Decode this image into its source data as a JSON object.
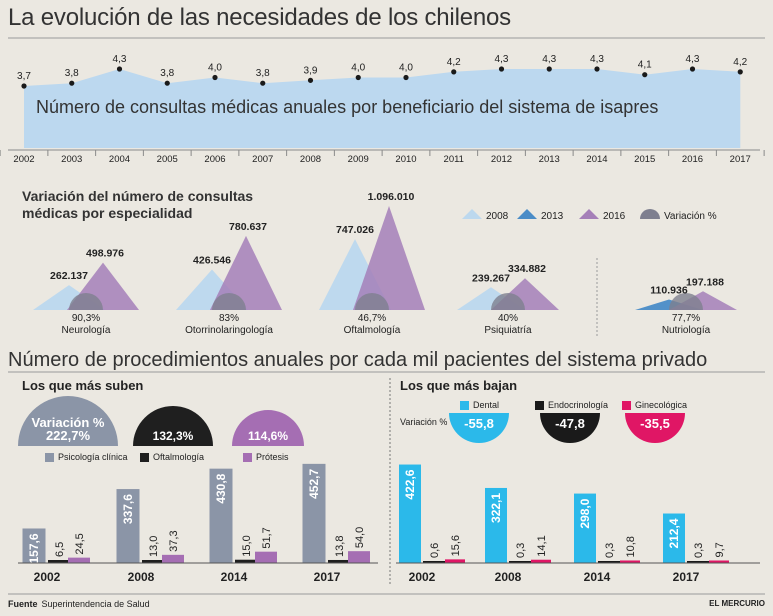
{
  "title": "La evolución de las necesidades de los chilenos",
  "colors": {
    "area": "#bcd8ef",
    "c2008": "#bcd8ee",
    "c2013": "#4a8cc7",
    "c2016": "#a57fb8",
    "variacion": "#7e7f8f",
    "psico": "#8b95a7",
    "oftal": "#1f1f1f",
    "protesis": "#a56eb3",
    "dental": "#2bb9ea",
    "endo": "#1a1a1a",
    "gine": "#e01665"
  },
  "chart_data": [
    {
      "type": "area",
      "subtitle": "Número de consultas médicas anuales por beneficiario del sistema de isapres",
      "x": [
        "2002",
        "2003",
        "2004",
        "2005",
        "2006",
        "2007",
        "2008",
        "2009",
        "2010",
        "2011",
        "2012",
        "2013",
        "2014",
        "2015",
        "2016",
        "2017"
      ],
      "values": [
        3.7,
        3.8,
        4.3,
        3.8,
        4.0,
        3.8,
        3.9,
        4.0,
        4.0,
        4.2,
        4.3,
        4.3,
        4.3,
        4.1,
        4.3,
        4.2
      ],
      "labels": [
        "3,7",
        "3,8",
        "4,3",
        "3,8",
        "4,0",
        "3,8",
        "3,9",
        "4,0",
        "4,0",
        "4,2",
        "4,3",
        "4,3",
        "4,3",
        "4,1",
        "4,3",
        "4,2"
      ]
    },
    {
      "type": "area",
      "title": "Variación del número de consultas médicas por especialidad",
      "legend": [
        "2008",
        "2013",
        "2016",
        "Variación %"
      ],
      "groups": [
        {
          "name": "Neurología",
          "series": [
            {
              "year": "2008",
              "value": 262137,
              "label": "262.137"
            },
            {
              "year": "2016",
              "value": 498976,
              "label": "498.976"
            }
          ],
          "variacion": "90,3%"
        },
        {
          "name": "Otorrinolaringología",
          "series": [
            {
              "year": "2008",
              "value": 426546,
              "label": "426.546"
            },
            {
              "year": "2016",
              "value": 780637,
              "label": "780.637"
            }
          ],
          "variacion": "83%"
        },
        {
          "name": "Oftalmología",
          "series": [
            {
              "year": "2008",
              "value": 747026,
              "label": "747.026"
            },
            {
              "year": "2016",
              "value": 1096010,
              "label": "1.096.010"
            }
          ],
          "variacion": "46,7%"
        },
        {
          "name": "Psiquiatría",
          "series": [
            {
              "year": "2008",
              "value": 239267,
              "label": "239.267"
            },
            {
              "year": "2016",
              "value": 334882,
              "label": "334.882"
            }
          ],
          "variacion": "40%"
        },
        {
          "name": "Nutriología",
          "series": [
            {
              "year": "2013",
              "value": 110936,
              "label": "110.936"
            },
            {
              "year": "2016",
              "value": 197188,
              "label": "197.188"
            }
          ],
          "variacion": "77,7%"
        }
      ]
    },
    {
      "type": "bar",
      "title": "Número de procedimientos anuales por cada mil pacientes del sistema privado",
      "subtitle": "Los que más suben",
      "categories": [
        "2002",
        "2008",
        "2014",
        "2017"
      ],
      "series": [
        {
          "name": "Psicología clínica",
          "values": [
            157.6,
            337.6,
            430.8,
            452.7
          ],
          "labels": [
            "157,6",
            "337,6",
            "430,8",
            "452,7"
          ],
          "variacion": "222,7%"
        },
        {
          "name": "Oftalmología",
          "values": [
            6.5,
            13.0,
            15.0,
            13.8
          ],
          "labels": [
            "6,5",
            "13,0",
            "15,0",
            "13,8"
          ],
          "variacion": "132,3%"
        },
        {
          "name": "Prótesis",
          "values": [
            24.5,
            37.3,
            51.7,
            54.0
          ],
          "labels": [
            "24,5",
            "37,3",
            "51,7",
            "54,0"
          ],
          "variacion": "114,6%"
        }
      ],
      "variacion_label": "Variación %"
    },
    {
      "type": "bar",
      "subtitle": "Los que más bajan",
      "categories": [
        "2002",
        "2008",
        "2014",
        "2017"
      ],
      "series": [
        {
          "name": "Dental",
          "values": [
            422.6,
            322.1,
            298.0,
            212.4
          ],
          "labels": [
            "422,6",
            "322,1",
            "298,0",
            "212,4"
          ],
          "variacion": "-55,8"
        },
        {
          "name": "Endocrinología",
          "values": [
            0.6,
            0.3,
            0.3,
            0.3
          ],
          "labels": [
            "0,6",
            "0,3",
            "0,3",
            "0,3"
          ],
          "variacion": "-47,8"
        },
        {
          "name": "Ginecológica",
          "values": [
            15.6,
            14.1,
            10.8,
            9.7
          ],
          "labels": [
            "15,6",
            "14,1",
            "10,8",
            "9,7"
          ],
          "variacion": "-35,5"
        }
      ],
      "variacion_label": "Variación %"
    }
  ],
  "footer": {
    "source_label": "Fuente",
    "source": "Superintendencia de Salud",
    "credit": "EL MERCURIO"
  }
}
